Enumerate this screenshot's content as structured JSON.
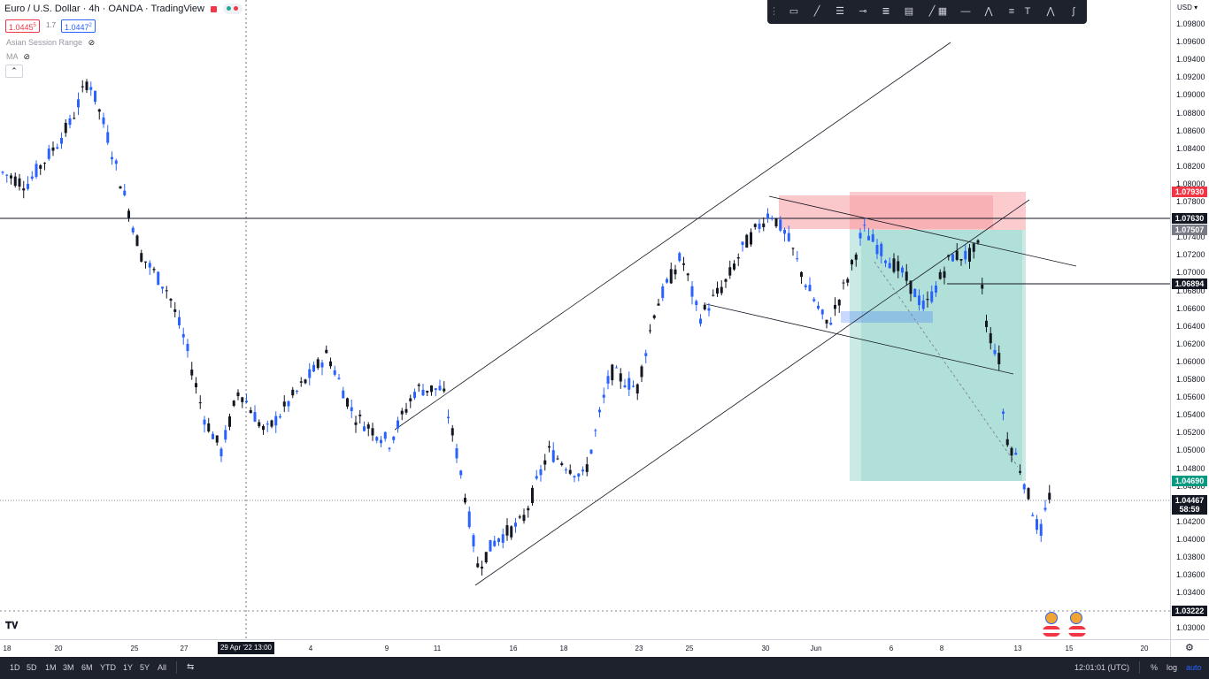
{
  "header": {
    "symbol_title": "Euro / U.S. Dollar · 4h · OANDA · TradingView",
    "bid": "1.0445",
    "bid_sup": "5",
    "spread": "1.7",
    "ask": "1.0447",
    "ask_sup": "2",
    "studies": [
      "Asian Session Range",
      "MA"
    ]
  },
  "price_scale": {
    "currency": "USD",
    "ticks": [
      "1.09800",
      "1.09600",
      "1.09400",
      "1.09200",
      "1.09000",
      "1.08800",
      "1.08600",
      "1.08400",
      "1.08200",
      "1.08000",
      "1.07800",
      "1.07600",
      "1.07400",
      "1.07200",
      "1.07000",
      "1.06800",
      "1.06600",
      "1.06400",
      "1.06200",
      "1.06000",
      "1.05800",
      "1.05600",
      "1.05400",
      "1.05200",
      "1.05000",
      "1.04800",
      "1.04600",
      "1.04400",
      "1.04200",
      "1.04000",
      "1.03800",
      "1.03600",
      "1.03400",
      "1.03200",
      "1.03000"
    ],
    "labels": [
      {
        "text": "1.07930",
        "color": "#f23645"
      },
      {
        "text": "1.07630",
        "color": "#131722"
      },
      {
        "text": "1.07507",
        "color": "#787b86"
      },
      {
        "text": "1.06894",
        "color": "#131722"
      },
      {
        "text": "1.04690",
        "color": "#089981"
      },
      {
        "text": "1.04467",
        "color": "#131722"
      },
      {
        "text": "58:59",
        "color": "#131722"
      },
      {
        "text": "1.03222",
        "color": "#131722"
      }
    ]
  },
  "time_axis": {
    "labels": [
      "18",
      "20",
      "25",
      "27",
      "4",
      "9",
      "11",
      "16",
      "18",
      "23",
      "25",
      "30",
      "Jun",
      "6",
      "8",
      "13",
      "15",
      "20"
    ],
    "crosshair_date": "29 Apr '22",
    "crosshair_time": "13:00"
  },
  "bottom_bar": {
    "ranges": [
      "1D",
      "5D",
      "1M",
      "3M",
      "6M",
      "YTD",
      "1Y",
      "5Y",
      "All"
    ],
    "clock": "12:01:01 (UTC)",
    "percent": "%",
    "log": "log",
    "auto": "auto"
  },
  "colors": {
    "up": "#2962ff",
    "down": "#131722",
    "stop_zone": "#f7a1a6",
    "target_zone": "#9fd9d0",
    "toolbar_bg": "#1e222d"
  },
  "toolbar": {
    "tools": [
      "rectangle-icon",
      "brush-icon",
      "fib-icon",
      "horizontal-ray-icon",
      "parallel-channel-icon",
      "table-icon",
      "trend-line-icon",
      "grid-icon",
      "hline-icon",
      "polyline-icon",
      "regression-icon",
      "text-icon",
      "pattern-icon",
      "curve-icon"
    ]
  }
}
